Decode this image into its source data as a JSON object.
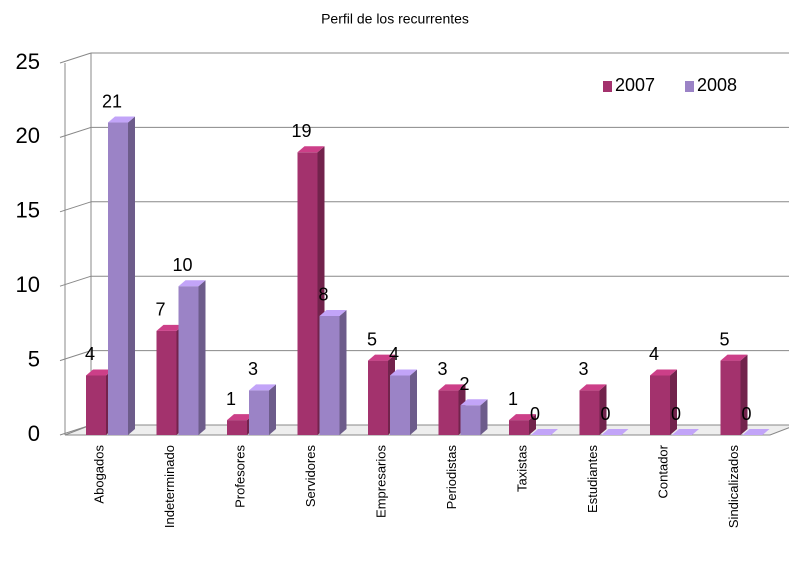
{
  "chart_data": {
    "type": "bar",
    "title": "Perfil de los recurrentes",
    "categories": [
      "Abogados",
      "Indeterminado",
      "Profesores",
      "Servidores",
      "Empresarios",
      "Periodistas",
      "Taxistas",
      "Estudiantes",
      "Contador",
      "Sindicalizados"
    ],
    "series": [
      {
        "name": "2007",
        "color": "#a3326d",
        "values": [
          4,
          7,
          1,
          19,
          5,
          3,
          1,
          3,
          4,
          5
        ]
      },
      {
        "name": "2008",
        "color": "#9b83c6",
        "values": [
          21,
          10,
          3,
          8,
          4,
          2,
          0,
          0,
          0,
          0
        ]
      }
    ],
    "ylim": [
      0,
      25
    ],
    "yticks": [
      0,
      5,
      10,
      15,
      20,
      25
    ],
    "grid": true,
    "legend": "top-right"
  }
}
